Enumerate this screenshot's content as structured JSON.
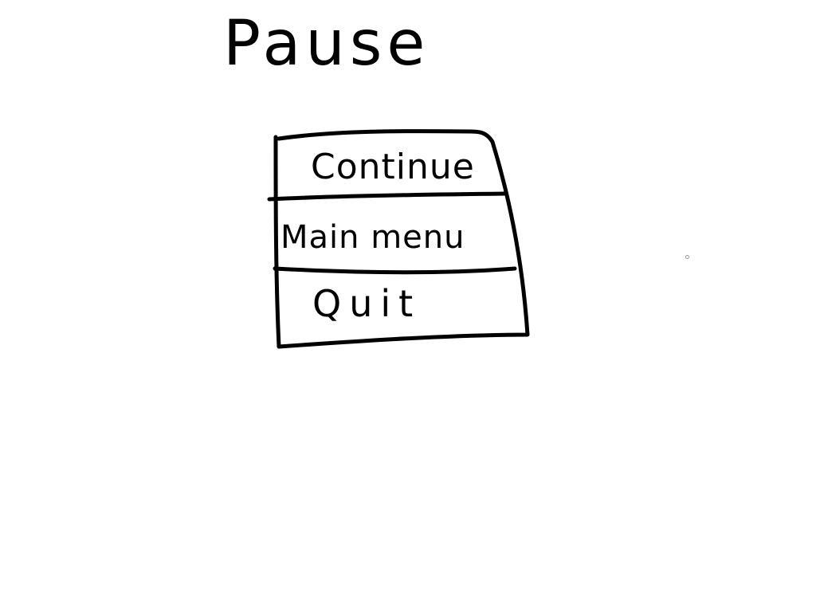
{
  "pause_menu": {
    "title": "Pause",
    "items": [
      {
        "id": "continue",
        "label": "Continue"
      },
      {
        "id": "main_menu",
        "label": "Main menu"
      },
      {
        "id": "quit",
        "label": "Quit"
      }
    ]
  },
  "colors": {
    "background": "#ffffff",
    "ink": "#000000"
  }
}
